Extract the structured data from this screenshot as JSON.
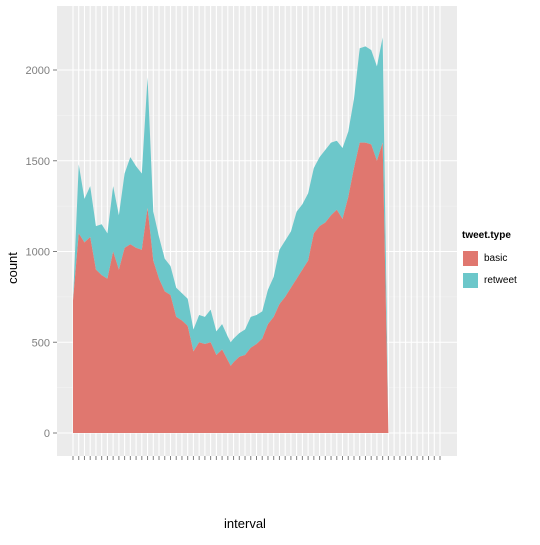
{
  "chart_data": {
    "type": "area",
    "stacked": true,
    "xlabel": "interval",
    "ylabel": "count",
    "ylim": [
      -100,
      2300
    ],
    "yticks": [
      0,
      500,
      1000,
      1500,
      2000
    ],
    "ytick_labels": [
      "0",
      "500",
      "1000",
      "1500",
      "2000"
    ],
    "grid": true,
    "legend": {
      "title": "tweet.type",
      "position": "right"
    },
    "x": [
      0,
      1,
      2,
      3,
      4,
      5,
      6,
      7,
      8,
      9,
      10,
      11,
      12,
      13,
      14,
      15,
      16,
      17,
      18,
      19,
      20,
      21,
      22,
      23,
      24,
      25,
      26,
      27,
      27.5,
      28,
      29,
      30,
      31,
      32,
      33,
      34,
      35,
      36,
      37,
      38,
      39,
      40,
      41,
      42,
      43,
      44,
      45,
      46,
      47,
      48,
      49,
      50,
      51,
      52,
      53,
      54,
      55,
      56,
      57,
      58,
      59,
      60,
      61,
      62,
      63,
      64
    ],
    "series": [
      {
        "name": "basic",
        "color": "#E0776F",
        "values": [
          730,
          1100,
          1050,
          1080,
          900,
          870,
          850,
          1000,
          900,
          1020,
          1040,
          1020,
          1010,
          1240,
          950,
          850,
          780,
          760,
          640,
          620,
          590,
          450,
          500,
          490,
          500,
          430,
          460,
          400,
          370,
          390,
          420,
          430,
          470,
          490,
          520,
          600,
          640,
          710,
          750,
          800,
          850,
          900,
          950,
          1100,
          1140,
          1160,
          1200,
          1230,
          1180,
          1300,
          1460,
          1600,
          1600,
          1590,
          1500,
          1600,
          0,
          0,
          0,
          0,
          0,
          0,
          0,
          0,
          0,
          0
        ]
      },
      {
        "name": "retweet",
        "color": "#6CC7CA",
        "values": [
          0,
          380,
          240,
          280,
          240,
          280,
          250,
          360,
          300,
          410,
          480,
          450,
          420,
          720,
          270,
          230,
          180,
          160,
          160,
          150,
          150,
          120,
          150,
          150,
          180,
          130,
          140,
          130,
          130,
          130,
          130,
          140,
          170,
          160,
          150,
          190,
          220,
          300,
          310,
          310,
          370,
          360,
          370,
          360,
          380,
          400,
          400,
          380,
          390,
          360,
          380,
          520,
          530,
          520,
          520,
          580,
          0,
          0,
          0,
          0,
          0,
          0,
          0,
          0,
          0,
          0
        ]
      }
    ]
  }
}
